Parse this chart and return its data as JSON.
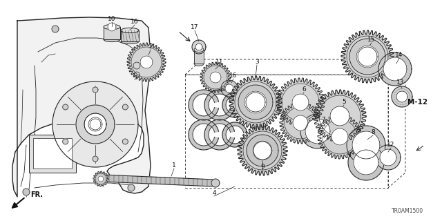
{
  "background_color": "#ffffff",
  "line_color": "#222222",
  "ref_code": "TR0AM1500",
  "m12_label": "M-12",
  "fr_label": "FR.",
  "fig_width": 6.4,
  "fig_height": 3.2,
  "dpi": 100,
  "case_color": "#f0f0f0",
  "gear_fill": "#d8d8d8",
  "white": "#ffffff"
}
